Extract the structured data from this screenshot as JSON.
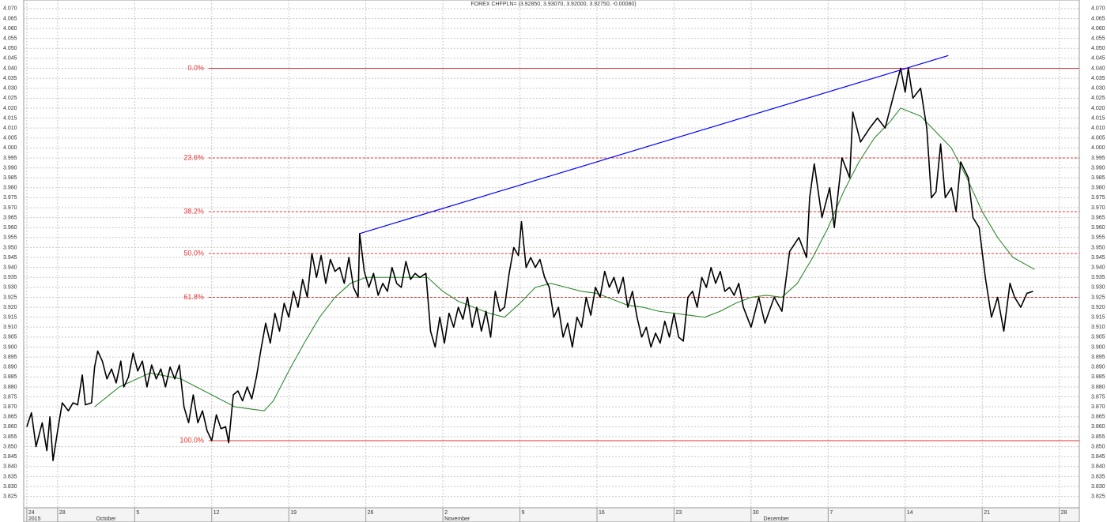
{
  "chart_data": {
    "type": "line",
    "title": "FOREX CHFPLN= (3.92850, 3.93070, 3.92000, 3.92750, -0.00080)",
    "xlim": [
      -0.2,
      68.3
    ],
    "ylim": [
      3.8193,
      4.0743
    ],
    "grid": true,
    "xticks": [
      {
        "value": 0,
        "label": "24"
      },
      {
        "value": 2,
        "label": "28"
      },
      {
        "value": 7,
        "label": "5"
      },
      {
        "value": 12,
        "label": "12"
      },
      {
        "value": 17,
        "label": "19"
      },
      {
        "value": 22,
        "label": "26"
      },
      {
        "value": 27,
        "label": "2"
      },
      {
        "value": 32,
        "label": "9"
      },
      {
        "value": 37,
        "label": "16"
      },
      {
        "value": 42,
        "label": "23"
      },
      {
        "value": 47,
        "label": "30"
      },
      {
        "value": 52,
        "label": "7"
      },
      {
        "value": 57,
        "label": "14"
      },
      {
        "value": 62,
        "label": "21"
      },
      {
        "value": 67,
        "label": "28"
      }
    ],
    "xticks_secondary": [
      {
        "value": 0,
        "label": "2015"
      },
      {
        "value": 4.4,
        "label": "October"
      },
      {
        "value": 27,
        "label": "November"
      },
      {
        "value": 47.7,
        "label": "December"
      }
    ],
    "yticks": [
      3.825,
      {
        "value": 3.83,
        "label": "3.830"
      },
      3.835,
      {
        "value": 3.84,
        "label": "3.840"
      },
      3.845,
      {
        "value": 3.85,
        "label": "3.850"
      },
      3.855,
      {
        "value": 3.86,
        "label": "3.860"
      },
      3.865,
      {
        "value": 3.87,
        "label": "3.870"
      },
      3.875,
      {
        "value": 3.88,
        "label": "3.880"
      },
      3.885,
      {
        "value": 3.89,
        "label": "3.890"
      },
      3.895,
      {
        "value": 3.9,
        "label": "3.900"
      },
      3.905,
      {
        "value": 3.91,
        "label": "3.910"
      },
      3.915,
      {
        "value": 3.92,
        "label": "3.920"
      },
      3.925,
      {
        "value": 3.93,
        "label": "3.930"
      },
      3.935,
      {
        "value": 3.94,
        "label": "3.940"
      },
      3.945,
      {
        "value": 3.95,
        "label": "3.950"
      },
      3.955,
      {
        "value": 3.96,
        "label": "3.960"
      },
      3.965,
      {
        "value": 3.97,
        "label": "3.970"
      },
      3.975,
      {
        "value": 3.98,
        "label": "3.980"
      },
      3.985,
      {
        "value": 3.99,
        "label": "3.990"
      },
      3.995,
      {
        "value": 4,
        "label": "4.000"
      },
      4.005,
      {
        "value": 4.01,
        "label": "4.010"
      },
      4.015,
      {
        "value": 4.02,
        "label": "4.020"
      },
      4.025,
      {
        "value": 4.03,
        "label": "4.030"
      },
      4.035,
      {
        "value": 4.04,
        "label": "4.040"
      },
      4.045,
      {
        "value": 4.05,
        "label": "4.050"
      },
      4.055,
      {
        "value": 4.06,
        "label": "4.060"
      },
      4.065,
      {
        "value": 4.07,
        "label": "4.070"
      }
    ],
    "series": [
      {
        "color": "#000000",
        "x": [
          0,
          0.3,
          0.6,
          1,
          1.3,
          1.5,
          1.7,
          2,
          2.3,
          2.7,
          3,
          3.3,
          3.6,
          3.8,
          4.2,
          4.4,
          4.6,
          4.9,
          5.2,
          5.5,
          5.8,
          6.1,
          6.3,
          6.6,
          6.9,
          7.2,
          7.5,
          7.8,
          8.1,
          8.4,
          8.7,
          9,
          9.3,
          9.6,
          9.9,
          10.2,
          10.5,
          10.8,
          11.1,
          11.4,
          11.7,
          12,
          12.3,
          12.6,
          12.9,
          13.1,
          13.4,
          13.7,
          14,
          14.3,
          14.6,
          14.9,
          15.2,
          15.5,
          15.8,
          16.1,
          16.4,
          16.7,
          17,
          17.3,
          17.6,
          17.9,
          18.2,
          18.5,
          18.8,
          19.1,
          19.4,
          19.7,
          20,
          20.3,
          20.6,
          20.9,
          21.2,
          21.5,
          21.6,
          21.9,
          22.2,
          22.5,
          22.8,
          23.1,
          23.4,
          23.7,
          24,
          24.3,
          24.6,
          24.9,
          25.2,
          25.5,
          25.9,
          26.2,
          26.5,
          26.8,
          27.1,
          27.4,
          27.7,
          28,
          28.3,
          28.6,
          28.9,
          29.2,
          29.5,
          29.8,
          30.1,
          30.4,
          30.7,
          31,
          31.3,
          31.6,
          31.9,
          32.1,
          32.4,
          32.7,
          33,
          33.3,
          33.6,
          33.9,
          34.2,
          34.5,
          34.8,
          35.1,
          35.4,
          35.7,
          36,
          36.3,
          36.6,
          36.9,
          37.2,
          37.5,
          37.8,
          38.1,
          38.4,
          38.7,
          39,
          39.3,
          39.6,
          39.9,
          40.2,
          40.5,
          40.8,
          41.1,
          41.4,
          41.7,
          42,
          42.3,
          42.6,
          42.9,
          43.2,
          43.5,
          43.8,
          44.1,
          44.4,
          44.7,
          45,
          45.3,
          45.6,
          45.9,
          46.2,
          46.5,
          47,
          47.5,
          47.9,
          48.5,
          49,
          49.5,
          50.1,
          50.6,
          50.8,
          51.1,
          51.6,
          52.1,
          52.4,
          52.9,
          53.4,
          53.6,
          54.1,
          54.7,
          55.2,
          55.7,
          56.2,
          56.7,
          57,
          57.2,
          57.5,
          58,
          58.4,
          58.7,
          59,
          59.3,
          59.6,
          60,
          60.3,
          60.6,
          61.1,
          61.4,
          61.8,
          62.2,
          62.6,
          63,
          63.4,
          63.8,
          64.1,
          64.5,
          64.9,
          65.3
        ],
        "values": [
          3.86,
          3.867,
          3.85,
          3.862,
          3.848,
          3.865,
          3.843,
          3.858,
          3.872,
          3.868,
          3.872,
          3.871,
          3.886,
          3.871,
          3.872,
          3.89,
          3.898,
          3.893,
          3.884,
          3.889,
          3.882,
          3.893,
          3.88,
          3.885,
          3.897,
          3.888,
          3.893,
          3.88,
          3.891,
          3.884,
          3.889,
          3.88,
          3.89,
          3.884,
          3.891,
          3.87,
          3.862,
          3.876,
          3.862,
          3.868,
          3.858,
          3.853,
          3.866,
          3.859,
          3.86,
          3.852,
          3.876,
          3.878,
          3.873,
          3.88,
          3.874,
          3.885,
          3.899,
          3.912,
          3.902,
          3.917,
          3.908,
          3.922,
          3.915,
          3.928,
          3.92,
          3.934,
          3.925,
          3.947,
          3.935,
          3.946,
          3.932,
          3.944,
          3.938,
          3.94,
          3.932,
          3.945,
          3.93,
          3.925,
          3.957,
          3.938,
          3.93,
          3.937,
          3.926,
          3.932,
          3.928,
          3.94,
          3.932,
          3.93,
          3.943,
          3.934,
          3.937,
          3.935,
          3.937,
          3.908,
          3.9,
          3.915,
          3.902,
          3.917,
          3.91,
          3.92,
          3.914,
          3.925,
          3.91,
          3.92,
          3.908,
          3.918,
          3.905,
          3.928,
          3.918,
          3.92,
          3.937,
          3.95,
          3.946,
          3.963,
          3.94,
          3.945,
          3.94,
          3.944,
          3.935,
          3.93,
          3.915,
          3.92,
          3.905,
          3.912,
          3.9,
          3.915,
          3.91,
          3.925,
          3.916,
          3.93,
          3.925,
          3.938,
          3.93,
          3.935,
          3.927,
          3.935,
          3.92,
          3.928,
          3.915,
          3.905,
          3.91,
          3.9,
          3.907,
          3.902,
          3.913,
          3.905,
          3.917,
          3.905,
          3.903,
          3.925,
          3.928,
          3.92,
          3.935,
          3.93,
          3.94,
          3.932,
          3.938,
          3.928,
          3.93,
          3.926,
          3.932,
          3.92,
          3.91,
          3.925,
          3.912,
          3.925,
          3.918,
          3.948,
          3.955,
          3.945,
          3.975,
          3.992,
          3.965,
          3.98,
          3.96,
          3.995,
          3.985,
          4.018,
          4.003,
          4.01,
          4.015,
          4.01,
          4.025,
          4.04,
          4.028,
          4.04,
          4.025,
          4.03,
          4.01,
          3.975,
          3.978,
          4.002,
          3.975,
          3.98,
          3.968,
          3.993,
          3.985,
          3.965,
          3.96,
          3.935,
          3.915,
          3.925,
          3.908,
          3.932,
          3.925,
          3.92,
          3.927,
          3.928
        ]
      },
      {
        "color": "#2f8a2f",
        "x": [
          4.4,
          6,
          8,
          10,
          12,
          13.5,
          15.4,
          16,
          17,
          18,
          19,
          20,
          21,
          22,
          24,
          26,
          27,
          28,
          29,
          30,
          31,
          32,
          33,
          34,
          35,
          36,
          37,
          38,
          39,
          40,
          41,
          42,
          43,
          44,
          45,
          46,
          47,
          48,
          49,
          50,
          51,
          52,
          53,
          54,
          55,
          56,
          56.7,
          58,
          59,
          60,
          61,
          62,
          63,
          64,
          65.4
        ],
        "values": [
          3.87,
          3.88,
          3.887,
          3.884,
          3.876,
          3.87,
          3.868,
          3.873,
          3.888,
          3.902,
          3.915,
          3.925,
          3.932,
          3.935,
          3.935,
          3.935,
          3.928,
          3.923,
          3.92,
          3.917,
          3.915,
          3.922,
          3.93,
          3.932,
          3.93,
          3.928,
          3.927,
          3.924,
          3.921,
          3.92,
          3.918,
          3.917,
          3.916,
          3.915,
          3.918,
          3.922,
          3.925,
          3.926,
          3.925,
          3.932,
          3.945,
          3.96,
          3.978,
          3.993,
          4.005,
          4.013,
          4.02,
          4.016,
          4.008,
          4,
          3.985,
          3.968,
          3.955,
          3.945,
          3.939
        ]
      }
    ],
    "trendline": {
      "color": "#0000ff",
      "x": [
        21.6,
        59.8
      ],
      "values": [
        3.957,
        4.0464
      ]
    },
    "levels_color": "#e03030",
    "levels_from_x": 11.8,
    "levels": [
      {
        "label": "0.0%",
        "value": 4.04,
        "solid": true
      },
      {
        "label": "23.6%",
        "value": 3.995,
        "solid": false
      },
      {
        "label": "38.2%",
        "value": 3.968,
        "solid": false
      },
      {
        "label": "50.0%",
        "value": 3.947,
        "solid": false
      },
      {
        "label": "61.8%",
        "value": 3.925,
        "solid": false
      },
      {
        "label": "100.0%",
        "value": 3.853,
        "solid": true
      }
    ]
  }
}
